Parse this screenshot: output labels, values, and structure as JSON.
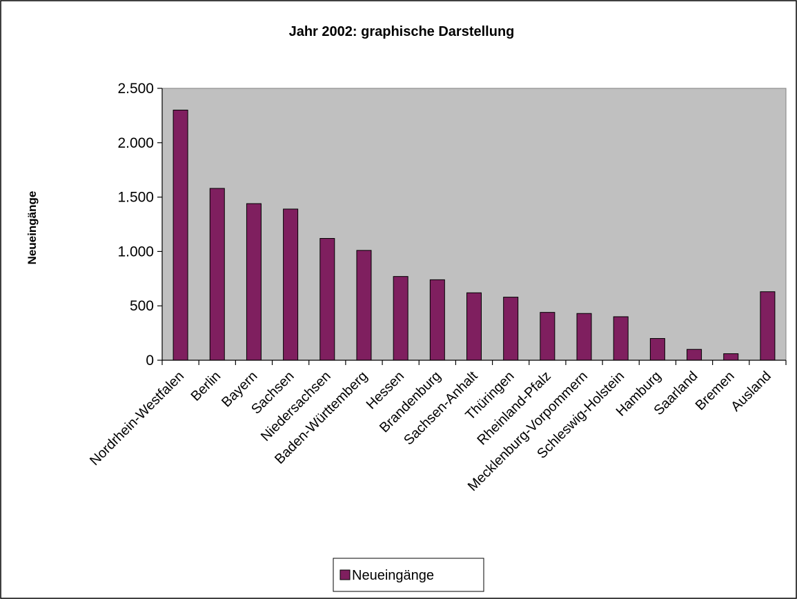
{
  "colors": {
    "bar": "#7f1f5f",
    "plot_background": "#c0c0c0",
    "axis": "#000000",
    "page_background": "#ffffff"
  },
  "chart_data": {
    "type": "bar",
    "title": "Jahr 2002: graphische Darstellung",
    "xlabel": "",
    "ylabel": "Neueingänge",
    "ylim": [
      0,
      2500
    ],
    "y_ticks": [
      0,
      500,
      1000,
      1500,
      2000,
      2500
    ],
    "y_tick_labels": [
      "0",
      "500",
      "1.000",
      "1.500",
      "2.000",
      "2.500"
    ],
    "grid": false,
    "legend_position": "bottom",
    "categories": [
      "Nordrhein-Westfalen",
      "Berlin",
      "Bayern",
      "Sachsen",
      "Niedersachsen",
      "Baden-Württemberg",
      "Hessen",
      "Brandenburg",
      "Sachsen-Anhalt",
      "Thüringen",
      "Rheinland-Pfalz",
      "Mecklenburg-Vorpommern",
      "Schleswig-Holstein",
      "Hamburg",
      "Saarland",
      "Bremen",
      "Ausland"
    ],
    "series": [
      {
        "name": "Neueingänge",
        "values": [
          2300,
          1580,
          1440,
          1390,
          1120,
          1010,
          770,
          740,
          620,
          580,
          440,
          430,
          400,
          200,
          100,
          60,
          630
        ]
      }
    ]
  }
}
